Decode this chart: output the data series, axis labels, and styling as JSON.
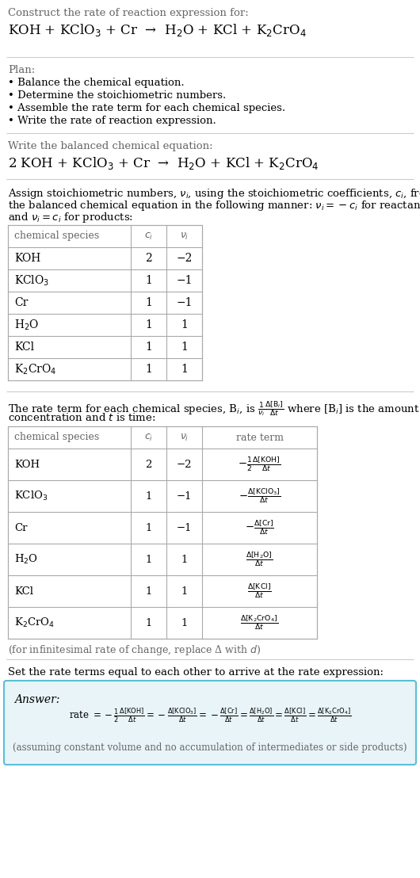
{
  "title_text": "Construct the rate of reaction expression for:",
  "reaction_unbalanced": "KOH + KClO$_3$ + Cr  →  H$_2$O + KCl + K$_2$CrO$_4$",
  "plan_header": "Plan:",
  "plan_items": [
    "• Balance the chemical equation.",
    "• Determine the stoichiometric numbers.",
    "• Assemble the rate term for each chemical species.",
    "• Write the rate of reaction expression."
  ],
  "balanced_header": "Write the balanced chemical equation:",
  "reaction_balanced": "2 KOH + KClO$_3$ + Cr  →  H$_2$O + KCl + K$_2$CrO$_4$",
  "assign_text1": "Assign stoichiometric numbers, $\\nu_i$, using the stoichiometric coefficients, $c_i$, from",
  "assign_text2": "the balanced chemical equation in the following manner: $\\nu_i = -c_i$ for reactants",
  "assign_text3": "and $\\nu_i = c_i$ for products:",
  "table1_headers": [
    "chemical species",
    "$c_i$",
    "$\\nu_i$"
  ],
  "table1_data": [
    [
      "KOH",
      "2",
      "−2"
    ],
    [
      "KClO$_3$",
      "1",
      "−1"
    ],
    [
      "Cr",
      "1",
      "−1"
    ],
    [
      "H$_2$O",
      "1",
      "1"
    ],
    [
      "KCl",
      "1",
      "1"
    ],
    [
      "K$_2$CrO$_4$",
      "1",
      "1"
    ]
  ],
  "rate_text1": "The rate term for each chemical species, B$_i$, is $\\frac{1}{\\nu_i}\\frac{\\Delta[\\mathrm{B}_i]}{\\Delta t}$ where [B$_i$] is the amount",
  "rate_text2": "concentration and $t$ is time:",
  "table2_headers": [
    "chemical species",
    "$c_i$",
    "$\\nu_i$",
    "rate term"
  ],
  "table2_data": [
    [
      "KOH",
      "2",
      "−2",
      "$-\\frac{1}{2}\\frac{\\Delta[\\mathrm{KOH}]}{\\Delta t}$"
    ],
    [
      "KClO$_3$",
      "1",
      "−1",
      "$-\\frac{\\Delta[\\mathrm{KClO_3}]}{\\Delta t}$"
    ],
    [
      "Cr",
      "1",
      "−1",
      "$-\\frac{\\Delta[\\mathrm{Cr}]}{\\Delta t}$"
    ],
    [
      "H$_2$O",
      "1",
      "1",
      "$\\frac{\\Delta[\\mathrm{H_2O}]}{\\Delta t}$"
    ],
    [
      "KCl",
      "1",
      "1",
      "$\\frac{\\Delta[\\mathrm{KCl}]}{\\Delta t}$"
    ],
    [
      "K$_2$CrO$_4$",
      "1",
      "1",
      "$\\frac{\\Delta[\\mathrm{K_2CrO_4}]}{\\Delta t}$"
    ]
  ],
  "infinitesimal_note": "(for infinitesimal rate of change, replace Δ with $d$)",
  "set_rate_text": "Set the rate terms equal to each other to arrive at the rate expression:",
  "answer_label": "Answer:",
  "answer_rate": "rate $= -\\frac{1}{2}\\frac{\\Delta[\\mathrm{KOH}]}{\\Delta t} = -\\frac{\\Delta[\\mathrm{KClO_3}]}{\\Delta t} = -\\frac{\\Delta[\\mathrm{Cr}]}{\\Delta t} = \\frac{\\Delta[\\mathrm{H_2O}]}{\\Delta t} = \\frac{\\Delta[\\mathrm{KCl}]}{\\Delta t} = \\frac{\\Delta[\\mathrm{K_2CrO_4}]}{\\Delta t}$",
  "answer_note": "(assuming constant volume and no accumulation of intermediates or side products)",
  "bg_color": "#ffffff",
  "text_color": "#000000",
  "gray_color": "#666666",
  "table_line_color": "#aaaaaa",
  "answer_bg": "#e8f4f8",
  "answer_border": "#5bbfd4"
}
